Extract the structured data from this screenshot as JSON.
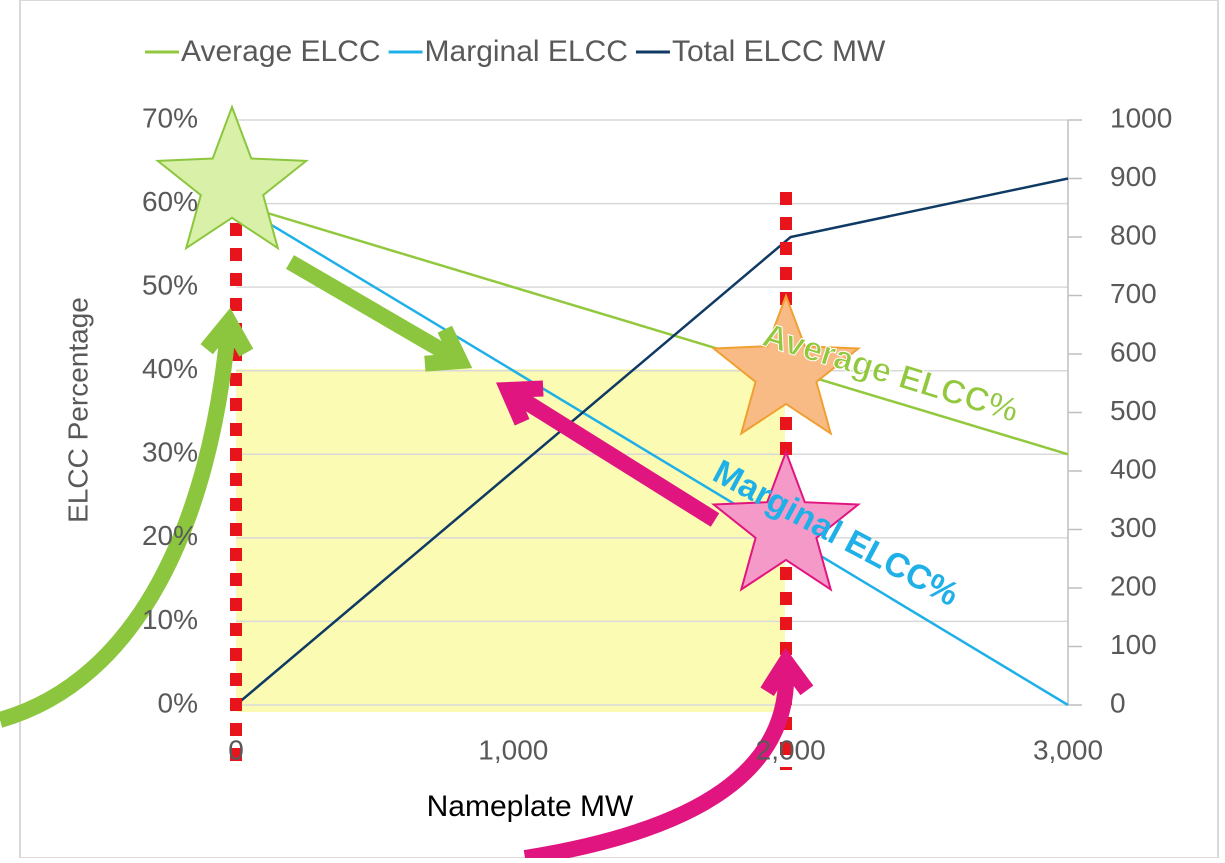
{
  "chart_data": {
    "type": "line",
    "x": [
      0,
      2000,
      3000
    ],
    "series": [
      {
        "name": "Average ELCC",
        "color": "#92c83e",
        "values": [
          60,
          40,
          30
        ]
      },
      {
        "name": "Marginal ELCC",
        "color": "#1fb0e8",
        "values": [
          60,
          20,
          0
        ]
      },
      {
        "name": "Total ELCC MW",
        "color": "#0f3a63",
        "values": [
          0,
          800,
          900
        ],
        "axis": "y2"
      }
    ],
    "xlim": [
      0,
      3000
    ],
    "xticks": [
      0,
      {
        "value": 1000,
        "label": "1,000"
      },
      {
        "value": 2000,
        "label": "2,000"
      },
      {
        "value": 3000,
        "label": "3,000"
      }
    ],
    "ylim": [
      0,
      70
    ],
    "yticks": [
      {
        "value": 0,
        "label": "0%"
      },
      {
        "value": 10,
        "label": "10%"
      },
      {
        "value": 20,
        "label": "20%"
      },
      {
        "value": 30,
        "label": "30%"
      },
      {
        "value": 40,
        "label": "40%"
      },
      {
        "value": 50,
        "label": "50%"
      },
      {
        "value": 60,
        "label": "60%"
      },
      {
        "value": 70,
        "label": "70%"
      }
    ],
    "y2lim": [
      0,
      1000
    ],
    "y2ticks": [
      0,
      100,
      200,
      300,
      400,
      500,
      600,
      700,
      800,
      900,
      1000
    ],
    "ylabel": "ELCC Percentage",
    "xlabel": "Nameplate MW",
    "grid": true,
    "legend": "top",
    "annotations": [
      "Average ELCC%",
      "Marginal ELCC%"
    ]
  }
}
